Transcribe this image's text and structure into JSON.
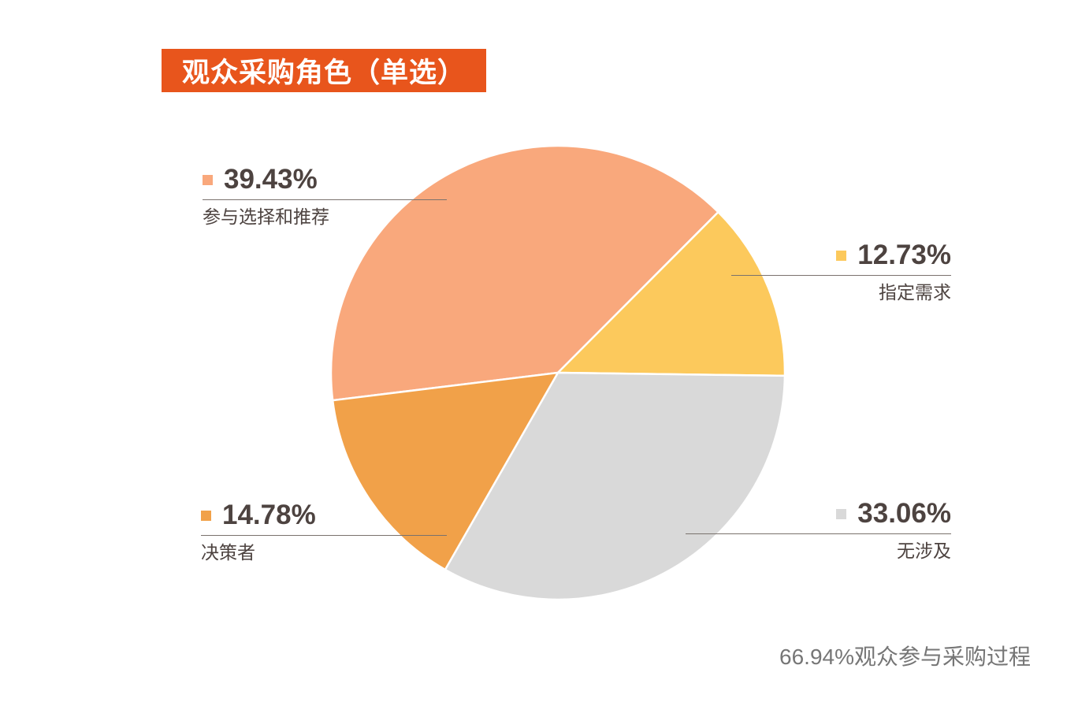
{
  "title": "观众采购角色（单选）",
  "footnote": "66.94%观众参与采购过程",
  "colors": {
    "title_bg": "#E8551C",
    "title_text": "#FFFFFF",
    "label_text": "#4D4340",
    "leader_line": "#7A726D",
    "footnote_text": "#767676",
    "background": "#FFFFFF"
  },
  "chart_data": {
    "type": "pie",
    "title": "观众采购角色（单选）",
    "center": [
      708,
      473
    ],
    "radius": 288,
    "start_angle_clockwise_from_top_deg": 263,
    "slice_gap_stroke": "#FFFFFF",
    "legend_position": "callouts-around-pie",
    "slices": [
      {
        "name": "参与选择和推荐",
        "value": 39.43,
        "display": "39.43%",
        "color": "#F9A87C"
      },
      {
        "name": "指定需求",
        "value": 12.73,
        "display": "12.73%",
        "color": "#FCC95C"
      },
      {
        "name": "无涉及",
        "value": 33.06,
        "display": "33.06%",
        "color": "#D9D9D9"
      },
      {
        "name": "决策者",
        "value": 14.78,
        "display": "14.78%",
        "color": "#F1A149"
      }
    ],
    "annotation": "66.94%观众参与采购过程"
  }
}
